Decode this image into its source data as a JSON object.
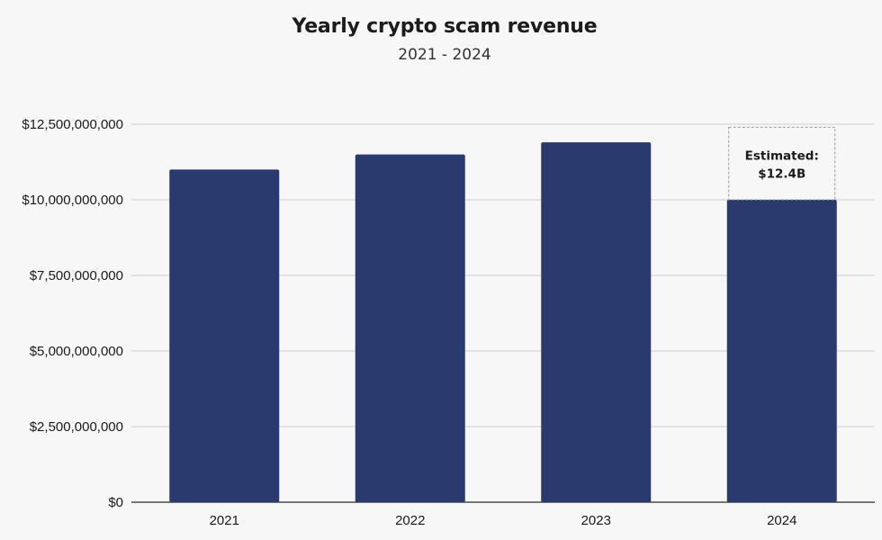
{
  "chart_data": {
    "type": "bar",
    "title": "Yearly crypto scam revenue",
    "subtitle": "2021 - 2024",
    "categories": [
      "2021",
      "2022",
      "2023",
      "2024"
    ],
    "values": [
      11000000000,
      11500000000,
      11900000000,
      10000000000
    ],
    "ylim": [
      0,
      12500000000
    ],
    "y_ticks": [
      0,
      2500000000,
      5000000000,
      7500000000,
      10000000000,
      12500000000
    ],
    "y_tick_labels": [
      "$0",
      "$2,500,000,000",
      "$5,000,000,000",
      "$7,500,000,000",
      "$10,000,000,000",
      "$12,500,000,000"
    ],
    "xlabel": "",
    "ylabel": "",
    "grid": true,
    "bar_color": "#2b3a6e",
    "annotation": {
      "category": "2024",
      "estimated_value": 12400000000,
      "label_line1": "Estimated:",
      "label_line2": "$12.4B"
    }
  }
}
